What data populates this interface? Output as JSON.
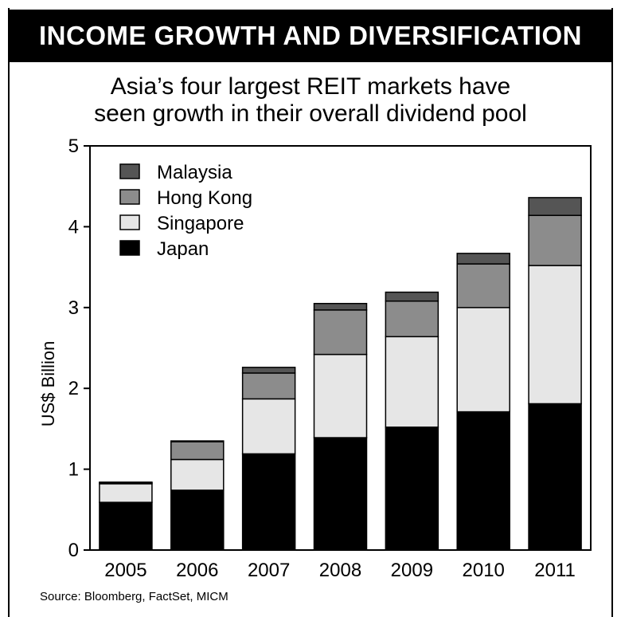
{
  "header": {
    "banner": "INCOME GROWTH AND DIVERSIFICATION",
    "subtitle_line1": "Asia’s four largest REIT markets have",
    "subtitle_line2": "seen growth in their overall dividend pool"
  },
  "source": "Source: Bloomberg, FactSet, MICM",
  "chart_data": {
    "type": "bar",
    "stacked": true,
    "categories": [
      "2005",
      "2006",
      "2007",
      "2008",
      "2009",
      "2010",
      "2011"
    ],
    "ylabel": "US$ Billion",
    "ylim": [
      0,
      5
    ],
    "yticks": [
      0,
      1,
      2,
      3,
      4,
      5
    ],
    "legend_position": "top-left",
    "series": [
      {
        "name": "Japan",
        "color": "#000000",
        "values": [
          0.59,
          0.74,
          1.19,
          1.39,
          1.52,
          1.71,
          1.81
        ]
      },
      {
        "name": "Singapore",
        "color": "#e6e6e6",
        "values": [
          0.23,
          0.38,
          0.68,
          1.03,
          1.12,
          1.29,
          1.71
        ]
      },
      {
        "name": "Hong Kong",
        "color": "#8c8c8c",
        "values": [
          0.01,
          0.22,
          0.32,
          0.55,
          0.44,
          0.54,
          0.62
        ]
      },
      {
        "name": "Malaysia",
        "color": "#555555",
        "values": [
          0.01,
          0.01,
          0.07,
          0.08,
          0.11,
          0.13,
          0.22
        ]
      }
    ],
    "legend_order": [
      "Malaysia",
      "Hong Kong",
      "Singapore",
      "Japan"
    ]
  }
}
